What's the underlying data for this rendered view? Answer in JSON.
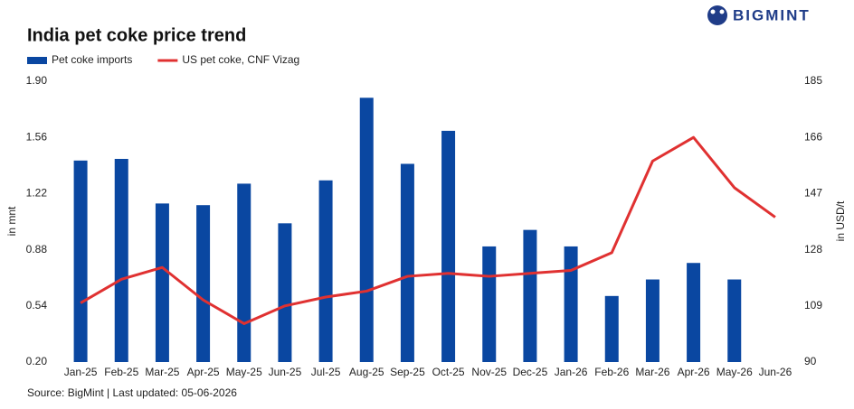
{
  "brand": "BIGMINT",
  "chart_data": {
    "type": "combo",
    "title": "India pet coke price trend",
    "source": "Source: BigMint | Last updated: 05-06-2026",
    "y_label": "in mnt",
    "y2_label": "in USD/t",
    "categories": [
      "Jan-25",
      "Feb-25",
      "Mar-25",
      "Apr-25",
      "May-25",
      "Jun-25",
      "Jul-25",
      "Aug-25",
      "Sep-25",
      "Oct-25",
      "Nov-25",
      "Dec-25",
      "Jan-26",
      "Feb-26",
      "Mar-26",
      "Apr-26",
      "May-26",
      "Jun-26"
    ],
    "series": [
      {
        "name": "Pet coke imports",
        "type": "bar",
        "color": "#0a47a1",
        "values": [
          1.42,
          1.43,
          1.16,
          1.15,
          1.28,
          1.04,
          1.3,
          1.8,
          1.4,
          1.6,
          0.9,
          1.0,
          0.9,
          0.6,
          0.7,
          0.8,
          0.7,
          null
        ]
      },
      {
        "name": "US pet coke, CNF Vizag",
        "type": "line",
        "axis": "y2",
        "color": "#e03131",
        "values": [
          110,
          118,
          122,
          111,
          103,
          109,
          112,
          114,
          119,
          120,
          119,
          120,
          121,
          127,
          158,
          166,
          149,
          139
        ]
      }
    ],
    "ylim": [
      0.2,
      1.9
    ],
    "yticks": [
      {
        "value": 0.2,
        "label": "0.20"
      },
      0.54,
      0.88,
      1.22,
      1.56,
      {
        "value": 1.9,
        "label": "1.90"
      }
    ],
    "y2lim": [
      90,
      185
    ],
    "y2ticks": [
      90,
      109,
      128,
      147,
      166,
      185
    ],
    "grid": false
  }
}
